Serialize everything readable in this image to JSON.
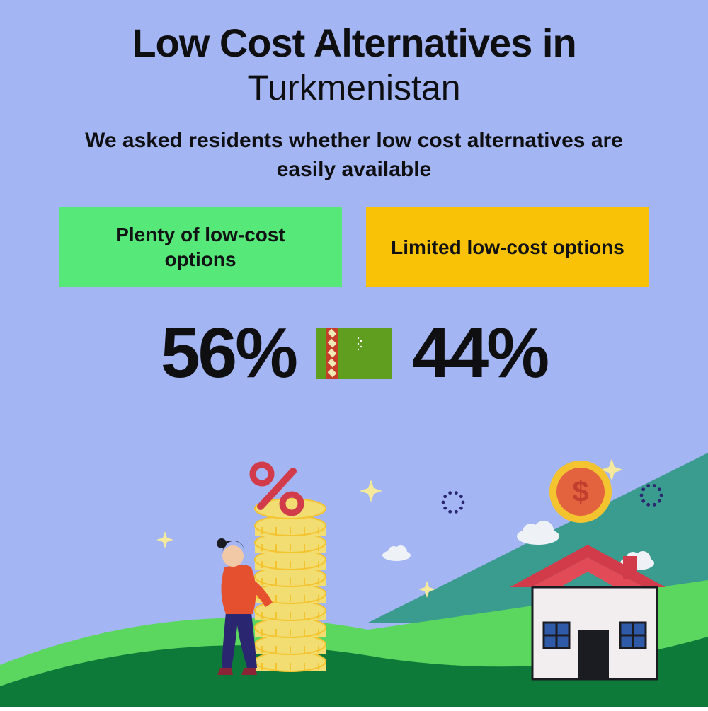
{
  "background_color": "#a3b5f2",
  "header": {
    "title_line1": "Low Cost Alternatives in",
    "title_line2": "Turkmenistan",
    "title_color": "#0f0f12",
    "title_line1_fontsize": 56,
    "title_line1_weight": 900,
    "title_line2_fontsize": 50,
    "title_line2_weight": 400,
    "subtitle": "We asked residents whether low cost alternatives are easily available",
    "subtitle_fontsize": 30,
    "subtitle_color": "#0f0f12"
  },
  "options": {
    "left": {
      "label": "Plenty of low-cost options",
      "bg_color": "#57e87a",
      "text_color": "#111214",
      "fontsize": 28
    },
    "right": {
      "label": "Limited low-cost options",
      "bg_color": "#f9c206",
      "text_color": "#111214",
      "fontsize": 28
    }
  },
  "stats": {
    "left_value": "56%",
    "right_value": "44%",
    "value_fontsize": 100,
    "value_color": "#0f0f12"
  },
  "flag": {
    "bg_color": "#5f9e1f",
    "stripe_color": "#c63d2a",
    "detail_color": "#f2e9b8",
    "crescent_color": "#ffffff"
  },
  "illustration": {
    "hill_dark": "#0e7a3a",
    "hill_light": "#5bd65f",
    "sky_triangle": "#3a9c8f",
    "house_wall": "#f2eef0",
    "house_roof": "#d13b4a",
    "house_roof_top": "#e24a58",
    "house_window": "#2f5aa8",
    "house_door": "#1b1b22",
    "house_outline": "#1b1b22",
    "coin_fill": "#f2dd72",
    "coin_outer": "#f4c430",
    "coin_inner": "#e3633f",
    "dollar_color": "#c13f2e",
    "percent_color": "#d13b4a",
    "person_top": "#e5502f",
    "person_pants": "#2a2670",
    "person_skin": "#f2c9a6",
    "person_hair": "#1b1b22",
    "person_shoes": "#8c2438",
    "cloud_color": "#eef1f6",
    "sparkle_color": "#f4e99c",
    "dotring_color": "#2a2670"
  }
}
